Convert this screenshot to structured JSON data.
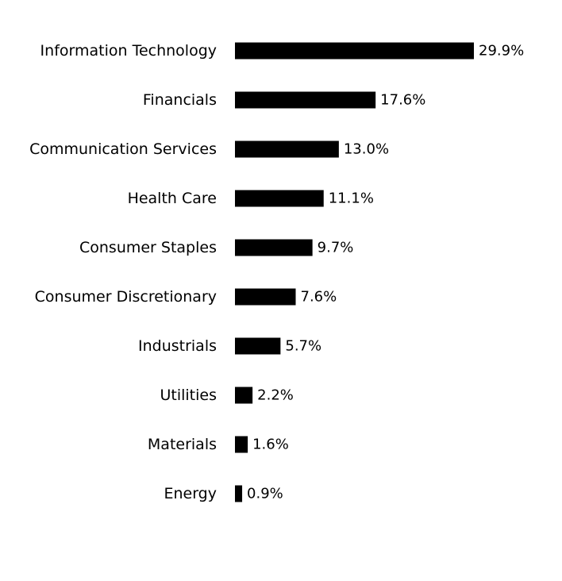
{
  "chart_data": {
    "type": "bar",
    "orientation": "horizontal",
    "categories": [
      "Information Technology",
      "Financials",
      "Communication Services",
      "Health Care",
      "Consumer Staples",
      "Consumer Discretionary",
      "Industrials",
      "Utilities",
      "Materials",
      "Energy"
    ],
    "values": [
      29.9,
      17.6,
      13.0,
      11.1,
      9.7,
      7.6,
      5.7,
      2.2,
      1.6,
      0.9
    ],
    "value_labels": [
      "29.9%",
      "17.6%",
      "13.0%",
      "11.1%",
      "9.7%",
      "7.6%",
      "5.7%",
      "2.2%",
      "1.6%",
      "0.9%"
    ],
    "unit": "%",
    "title": "",
    "xlabel": "",
    "ylabel": "",
    "xlim": [
      0,
      29.9
    ],
    "grid": false,
    "legend": "none",
    "bar_color": "#000000",
    "text_color": "#000000",
    "background": "#ffffff"
  }
}
